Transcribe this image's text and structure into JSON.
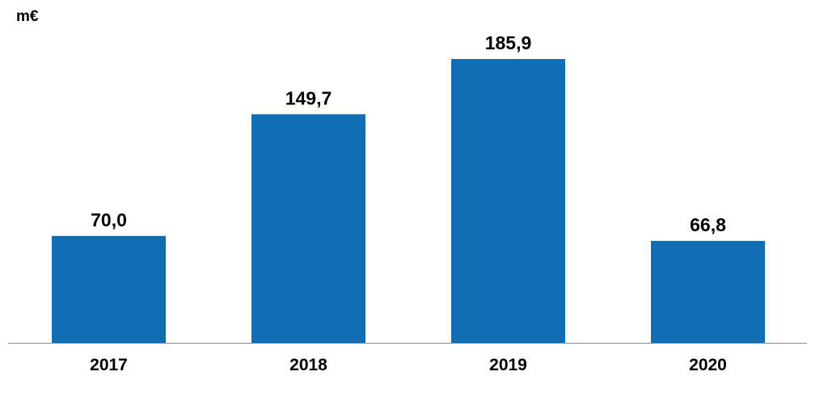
{
  "chart_data": {
    "type": "bar",
    "unit_label": "m€",
    "categories": [
      "2017",
      "2018",
      "2019",
      "2020"
    ],
    "values": [
      70.0,
      149.7,
      185.9,
      66.8
    ],
    "value_labels": [
      "70,0",
      "149,7",
      "185,9",
      "66,8"
    ],
    "ylim": [
      0,
      185.9
    ],
    "grid": false,
    "legend": "none",
    "colors": {
      "bar": "#0E6DB3",
      "axis": "#8C8C8C",
      "text": "#000000"
    }
  }
}
